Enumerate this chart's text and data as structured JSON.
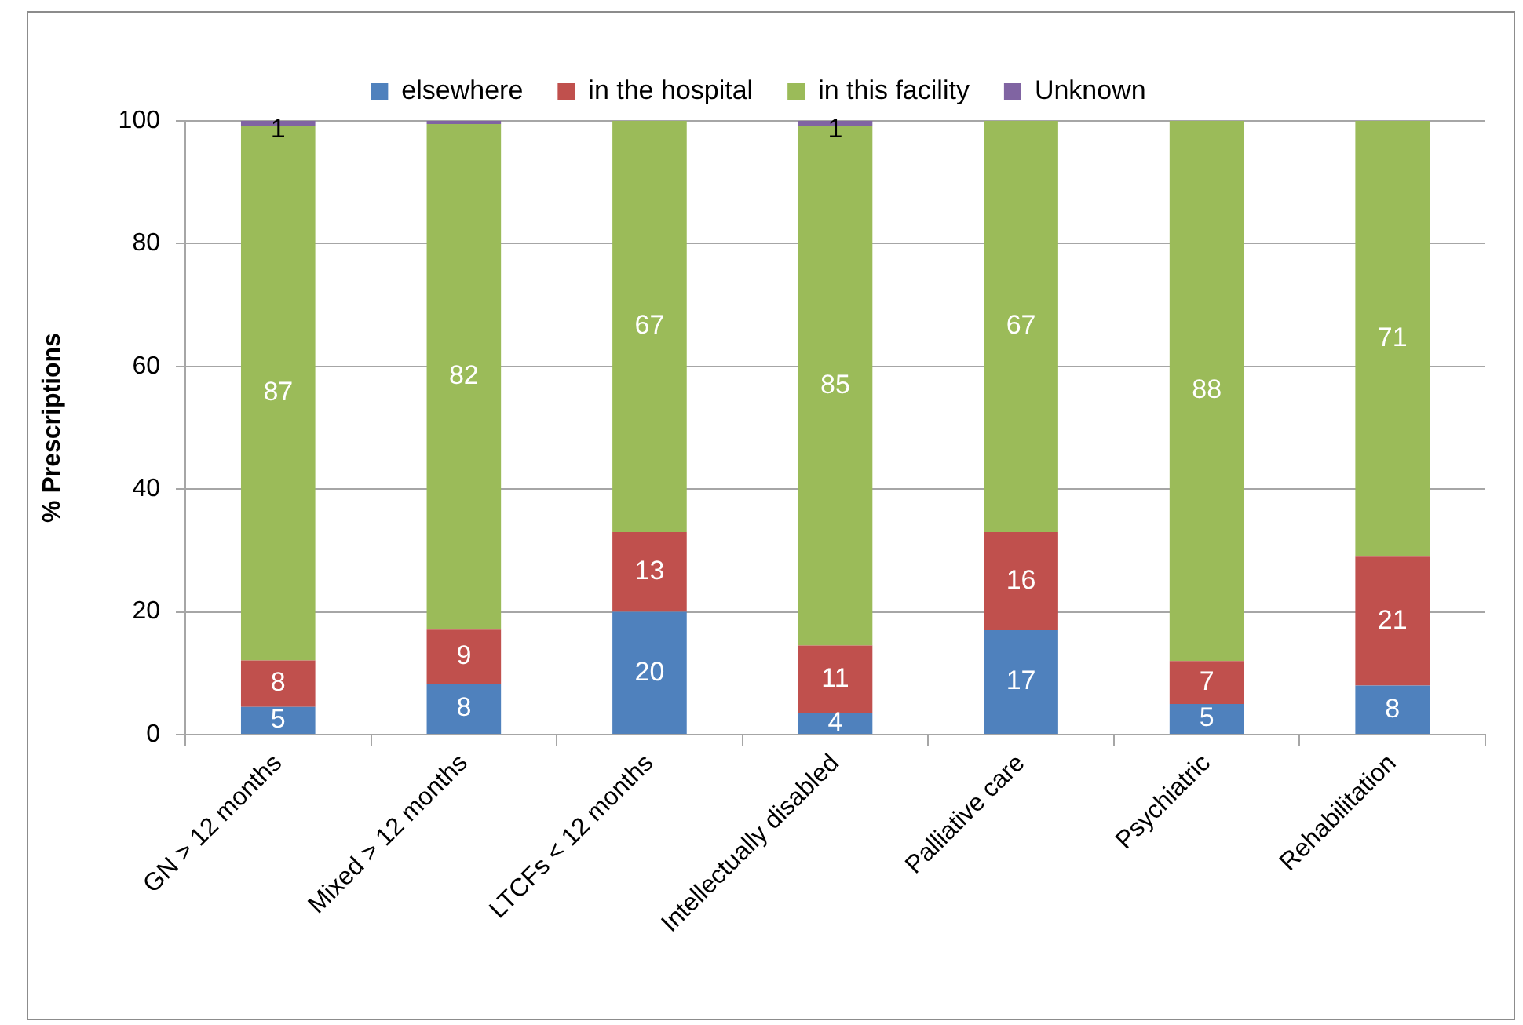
{
  "chart_data": {
    "type": "bar",
    "stacked": true,
    "ylabel": "% Prescriptions",
    "categories": [
      "GN > 12 months",
      "Mixed > 12 months",
      "LTCFs < 12 months",
      "Intellectually disabled",
      "Palliative care",
      "Psychiatric",
      "Rehabilitation"
    ],
    "series": [
      {
        "name": "elsewhere",
        "color": "#4f81bd",
        "values": [
          4.5,
          8.3,
          20,
          3.5,
          17,
          5,
          8
        ],
        "value_labels": [
          "5",
          "8",
          "20",
          "4",
          "17",
          "5",
          "8"
        ]
      },
      {
        "name": "in the hospital",
        "color": "#c0504d",
        "values": [
          7.6,
          8.8,
          13,
          11,
          16,
          7,
          21
        ],
        "value_labels": [
          "8",
          "9",
          "13",
          "11",
          "16",
          "7",
          "21"
        ]
      },
      {
        "name": "in this facility",
        "color": "#9bbb59",
        "values": [
          87.1,
          82.4,
          67,
          84.7,
          67,
          88,
          71
        ],
        "value_labels": [
          "87",
          "82",
          "67",
          "85",
          "67",
          "88",
          "71"
        ]
      },
      {
        "name": "Unknown",
        "color": "#8064a2",
        "values": [
          0.8,
          0.5,
          null,
          0.8,
          null,
          null,
          null
        ],
        "value_labels": [
          "1",
          null,
          null,
          "1",
          null,
          null,
          null
        ]
      }
    ],
    "ylim": [
      0,
      100
    ],
    "yticks": [
      0,
      20,
      40,
      60,
      80,
      100
    ],
    "grid": "y",
    "legend": "top"
  }
}
